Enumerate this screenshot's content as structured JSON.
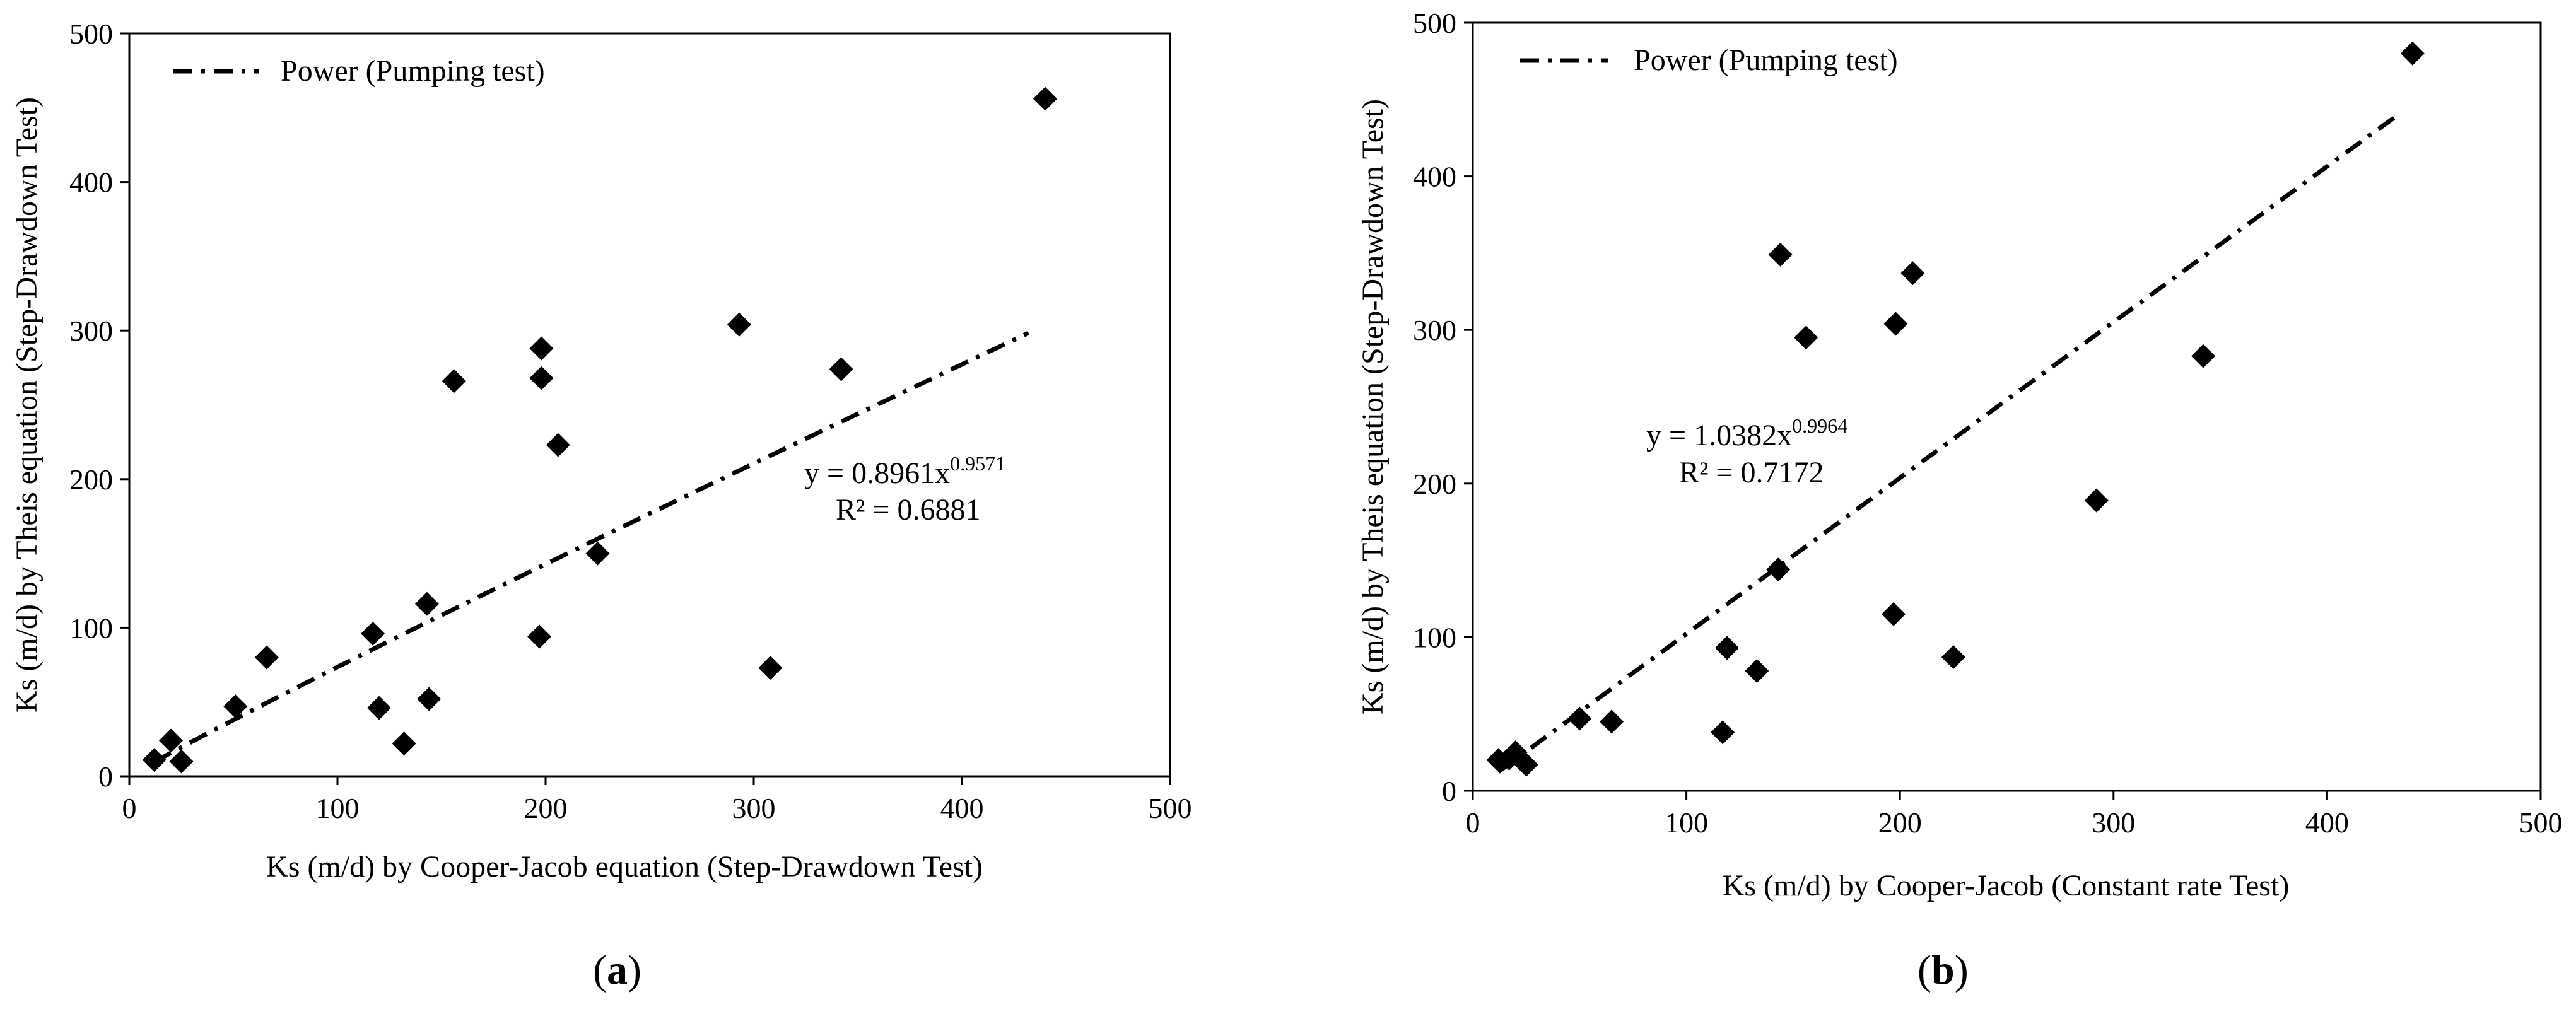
{
  "chart_data": [
    {
      "panel": "a",
      "panel_label": "a",
      "type": "scatter",
      "title": "",
      "xlabel": "Ks (m/d) by Cooper-Jacob equation (Step-Drawdown Test)",
      "ylabel": "Ks (m/d) by Theis equation (Step-Drawdown Test)",
      "xlim": [
        0,
        500
      ],
      "ylim": [
        0,
        500
      ],
      "xticks": [
        "0",
        "100",
        "200",
        "300",
        "400",
        "500"
      ],
      "yticks": [
        "0",
        "100",
        "200",
        "300",
        "400",
        "500"
      ],
      "legend": {
        "label": "Power (Pumping test)",
        "position": "top-left"
      },
      "grid": false,
      "points": [
        [
          12,
          11
        ],
        [
          20,
          24
        ],
        [
          25,
          10
        ],
        [
          51,
          47
        ],
        [
          66,
          80
        ],
        [
          117,
          96
        ],
        [
          120,
          46
        ],
        [
          132,
          22
        ],
        [
          143,
          116
        ],
        [
          144,
          52
        ],
        [
          156,
          266
        ],
        [
          197,
          94
        ],
        [
          198,
          288
        ],
        [
          198,
          268
        ],
        [
          206,
          223
        ],
        [
          225,
          150
        ],
        [
          293,
          304
        ],
        [
          308,
          73
        ],
        [
          342,
          274
        ],
        [
          440,
          456
        ]
      ],
      "trendline": {
        "type": "power",
        "a": 0.8961,
        "b": 0.9571,
        "x_range": [
          12,
          432
        ]
      },
      "equation": {
        "base": "y = 0.8961x",
        "exponent": "0.9571",
        "r2": "R² = 0.6881"
      }
    },
    {
      "panel": "b",
      "panel_label": "b",
      "type": "scatter",
      "title": "",
      "xlabel": "Ks (m/d) by Cooper-Jacob (Constant rate Test)",
      "ylabel": "Ks (m/d) by Theis equation (Step-Drawdown Test)",
      "xlim": [
        0,
        500
      ],
      "ylim": [
        0,
        500
      ],
      "xticks": [
        "0",
        "100",
        "200",
        "300",
        "400",
        "500"
      ],
      "yticks": [
        "0",
        "100",
        "200",
        "300",
        "400",
        "500"
      ],
      "legend": {
        "label": "Power (Pumping test)",
        "position": "top-left"
      },
      "grid": false,
      "points": [
        [
          12,
          20
        ],
        [
          17,
          21
        ],
        [
          20,
          25
        ],
        [
          25,
          17
        ],
        [
          50,
          47
        ],
        [
          65,
          45
        ],
        [
          117,
          38
        ],
        [
          119,
          93
        ],
        [
          133,
          78
        ],
        [
          143,
          144
        ],
        [
          144,
          349
        ],
        [
          156,
          295
        ],
        [
          197,
          115
        ],
        [
          198,
          304
        ],
        [
          206,
          337
        ],
        [
          225,
          87
        ],
        [
          292,
          189
        ],
        [
          342,
          283
        ],
        [
          440,
          480
        ]
      ],
      "trendline": {
        "type": "power",
        "a": 1.0382,
        "b": 0.9964,
        "x_range": [
          12,
          432
        ]
      },
      "equation": {
        "base": "y = 1.0382x",
        "exponent": "0.9964",
        "r2": "R² = 0.7172"
      }
    }
  ]
}
